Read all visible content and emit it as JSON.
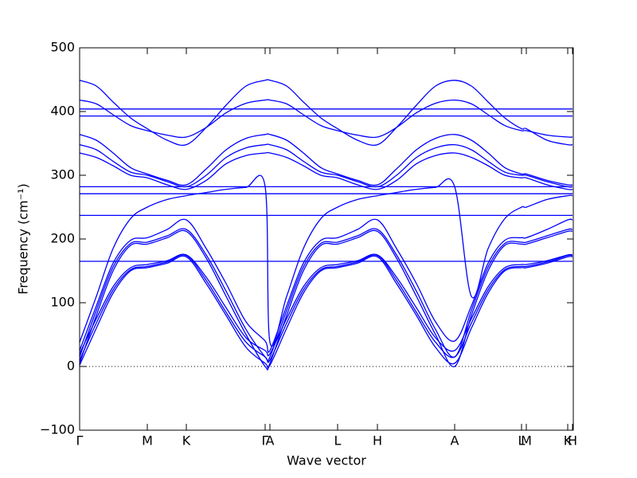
{
  "chart_data": {
    "type": "line",
    "xlabel": "Wave vector",
    "ylabel": "Frequency (cm⁻¹)",
    "x": [
      0,
      21,
      42,
      64,
      85,
      110,
      134,
      159,
      184,
      209,
      233,
      239,
      260,
      281,
      303,
      324,
      349,
      374,
      398,
      423,
      447,
      471,
      492,
      513,
      534,
      555,
      561,
      587,
      613,
      619
    ],
    "xlim": [
      0,
      620
    ],
    "xticks": [
      {
        "value": 0,
        "label": "Γ"
      },
      {
        "value": 85,
        "label": "M"
      },
      {
        "value": 134,
        "label": "K"
      },
      {
        "value": 233,
        "label": "Γ"
      },
      {
        "value": 239,
        "label": "A"
      },
      {
        "value": 324,
        "label": "L"
      },
      {
        "value": 374,
        "label": "H"
      },
      {
        "value": 471,
        "label": "A"
      },
      {
        "value": 555,
        "label": "L"
      },
      {
        "value": 561,
        "label": "M"
      },
      {
        "value": 613,
        "label": "K"
      },
      {
        "value": 619,
        "label": "H"
      }
    ],
    "ylim": [
      -100,
      500
    ],
    "yticks": [
      {
        "value": -100,
        "label": "−100"
      },
      0,
      100,
      200,
      300,
      400,
      500
    ],
    "zero_line": 0,
    "series": [
      {
        "color": "#0000ff",
        "values": [
          449,
          440,
          415,
          390,
          373,
          355,
          348,
          375,
          410,
          440,
          449,
          449,
          440,
          415,
          390,
          373,
          355,
          348,
          375,
          410,
          440,
          449,
          440,
          415,
          390,
          373,
          373,
          355,
          348,
          348
        ]
      },
      {
        "color": "#0000ff",
        "values": [
          418,
          412,
          395,
          378,
          370,
          363,
          360,
          375,
          398,
          413,
          418,
          418,
          412,
          395,
          378,
          370,
          363,
          360,
          375,
          398,
          413,
          418,
          412,
          395,
          378,
          370,
          370,
          363,
          360,
          360
        ]
      },
      {
        "color": "#0000ff",
        "values": [
          404,
          404,
          404,
          404,
          404,
          404,
          404,
          404,
          404,
          404,
          404,
          404,
          404,
          404,
          404,
          404,
          404,
          404,
          404,
          404,
          404,
          404,
          404,
          404,
          404,
          404,
          404,
          404,
          404,
          404
        ]
      },
      {
        "color": "#0000ff",
        "values": [
          393,
          393,
          393,
          393,
          393,
          393,
          393,
          393,
          393,
          393,
          393,
          393,
          393,
          393,
          393,
          393,
          393,
          393,
          393,
          393,
          393,
          393,
          393,
          393,
          393,
          393,
          393,
          393,
          393,
          393
        ]
      },
      {
        "color": "#0000ff",
        "values": [
          364,
          355,
          335,
          312,
          302,
          292,
          285,
          310,
          340,
          358,
          364,
          364,
          355,
          335,
          312,
          302,
          292,
          285,
          310,
          340,
          358,
          364,
          355,
          335,
          312,
          302,
          302,
          292,
          285,
          285
        ]
      },
      {
        "color": "#0000ff",
        "values": [
          348,
          340,
          322,
          305,
          300,
          290,
          282,
          300,
          328,
          343,
          348,
          348,
          340,
          322,
          305,
          300,
          290,
          282,
          300,
          328,
          343,
          348,
          340,
          322,
          305,
          300,
          300,
          290,
          282,
          282
        ]
      },
      {
        "color": "#0000ff",
        "values": [
          335,
          328,
          315,
          300,
          296,
          285,
          278,
          292,
          318,
          331,
          335,
          335,
          328,
          315,
          300,
          296,
          285,
          278,
          292,
          318,
          331,
          335,
          328,
          315,
          300,
          296,
          296,
          285,
          278,
          278
        ]
      },
      {
        "color": "#0000ff",
        "values": [
          282,
          282,
          282,
          282,
          282,
          282,
          282,
          282,
          282,
          282,
          282,
          282,
          282,
          282,
          282,
          282,
          282,
          282,
          282,
          282,
          282,
          282,
          282,
          282,
          282,
          282,
          282,
          282,
          282,
          282
        ]
      },
      {
        "color": "#0000ff",
        "values": [
          271,
          271,
          271,
          271,
          271,
          271,
          271,
          271,
          271,
          271,
          271,
          271,
          271,
          271,
          271,
          271,
          271,
          271,
          271,
          271,
          271,
          271,
          271,
          271,
          271,
          271,
          271,
          271,
          271,
          271
        ]
      },
      {
        "color": "#0000ff",
        "values": [
          237,
          237,
          237,
          237,
          237,
          237,
          237,
          237,
          237,
          237,
          237,
          237,
          237,
          237,
          237,
          237,
          237,
          237,
          237,
          237,
          237,
          237,
          237,
          237,
          237,
          237,
          237,
          237,
          237,
          237
        ]
      },
      {
        "color": "#0000ff",
        "values": [
          165,
          165,
          165,
          165,
          165,
          165,
          165,
          165,
          165,
          165,
          165,
          165,
          165,
          165,
          165,
          165,
          165,
          165,
          165,
          165,
          165,
          165,
          165,
          165,
          165,
          165,
          165,
          165,
          165,
          165
        ]
      },
      {
        "color": "#0000ff",
        "values": [
          38,
          110,
          185,
          232,
          250,
          262,
          268,
          273,
          278,
          281,
          282,
          38,
          110,
          185,
          232,
          250,
          262,
          268,
          273,
          278,
          281,
          282,
          110,
          185,
          232,
          250,
          250,
          262,
          268,
          268
        ]
      },
      {
        "color": "#0000ff",
        "values": [
          2,
          60,
          115,
          150,
          155,
          162,
          172,
          130,
          80,
          30,
          5,
          2,
          60,
          115,
          150,
          155,
          162,
          172,
          130,
          80,
          30,
          5,
          60,
          115,
          150,
          155,
          155,
          162,
          172,
          172
        ]
      },
      {
        "color": "#0000ff",
        "values": [
          10,
          68,
          120,
          152,
          157,
          164,
          174,
          135,
          85,
          38,
          15,
          10,
          68,
          120,
          152,
          157,
          164,
          174,
          135,
          85,
          38,
          15,
          68,
          120,
          152,
          157,
          157,
          164,
          174,
          174
        ]
      },
      {
        "color": "#0000ff",
        "values": [
          20,
          75,
          125,
          155,
          160,
          166,
          175,
          140,
          92,
          45,
          25,
          20,
          75,
          125,
          155,
          160,
          166,
          175,
          140,
          92,
          45,
          25,
          75,
          125,
          155,
          160,
          160,
          166,
          175,
          175
        ]
      },
      {
        "color": "#0000ff",
        "values": [
          5,
          80,
          150,
          190,
          192,
          202,
          212,
          170,
          110,
          50,
          0,
          5,
          80,
          150,
          190,
          192,
          202,
          212,
          170,
          110,
          50,
          0,
          80,
          150,
          190,
          192,
          192,
          202,
          212,
          212
        ]
      },
      {
        "color": "#0000ff",
        "values": [
          15,
          88,
          156,
          193,
          195,
          205,
          215,
          175,
          118,
          58,
          15,
          15,
          88,
          156,
          193,
          195,
          205,
          215,
          175,
          118,
          58,
          15,
          88,
          156,
          193,
          195,
          195,
          205,
          215,
          215
        ]
      },
      {
        "color": "#0000ff",
        "values": [
          25,
          95,
          162,
          198,
          202,
          215,
          230,
          185,
          130,
          70,
          40,
          25,
          95,
          162,
          198,
          202,
          215,
          230,
          185,
          130,
          70,
          40,
          95,
          162,
          198,
          202,
          202,
          215,
          230,
          230
        ]
      }
    ]
  }
}
